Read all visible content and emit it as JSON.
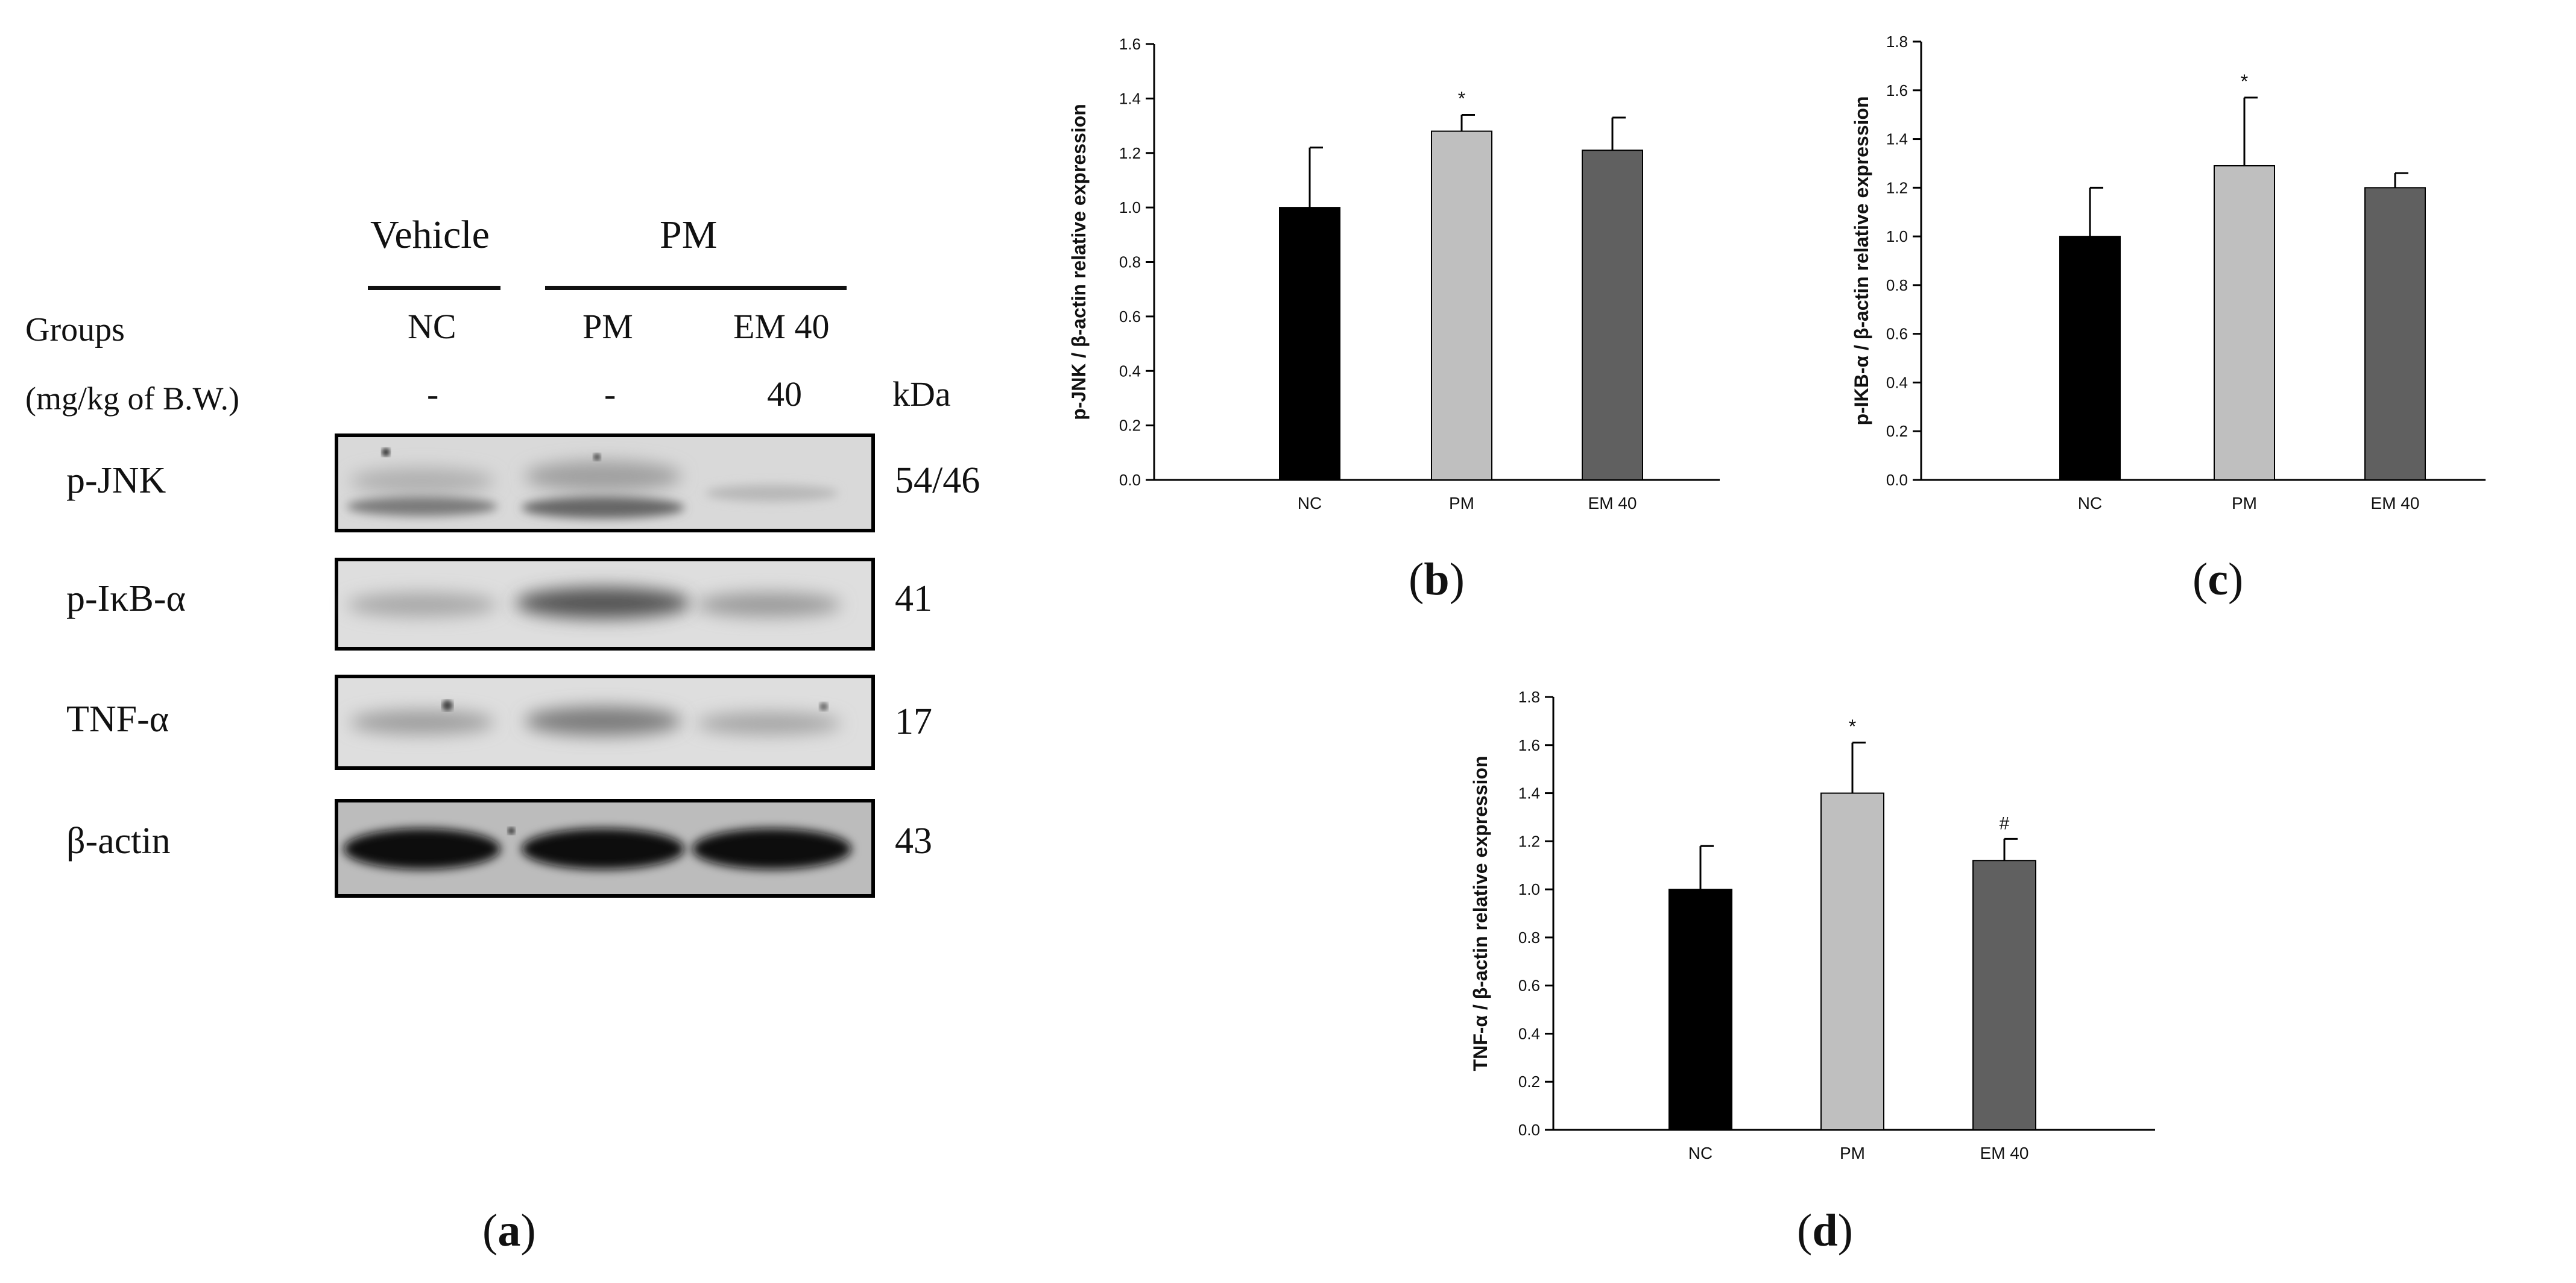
{
  "blot": {
    "header_left": "Vehicle",
    "header_right": "PM",
    "groups_label": "Groups",
    "dose_label": "(mg/kg of B.W.)",
    "kda_label": "kDa",
    "lanes": [
      {
        "name": "NC",
        "dose": "-"
      },
      {
        "name": "PM",
        "dose": "-"
      },
      {
        "name": "EM 40",
        "dose": "40"
      }
    ],
    "rows": [
      {
        "protein": "p-JNK",
        "kda": "54/46"
      },
      {
        "protein": "p-IκB-α",
        "kda": "41"
      },
      {
        "protein": "TNF-α",
        "kda": "17"
      },
      {
        "protein": "β-actin",
        "kda": "43"
      }
    ],
    "panel_label": "a"
  },
  "colors": {
    "NC": "#000000",
    "PM": "#bfbfbf",
    "EM40": "#606060"
  },
  "chart_data": [
    {
      "type": "bar",
      "panel_label": "b",
      "ylabel": "p-JNK / β-actin relative expression",
      "categories": [
        "NC",
        "PM",
        "EM 40"
      ],
      "values": [
        1.0,
        1.28,
        1.21
      ],
      "errors": [
        0.22,
        0.06,
        0.12
      ],
      "annotations": [
        "",
        "*",
        ""
      ],
      "ylim": [
        0,
        1.6
      ],
      "yticks": [
        "0.0",
        "0.2",
        "0.4",
        "0.6",
        "0.8",
        "1.0",
        "1.2",
        "1.4",
        "1.6"
      ]
    },
    {
      "type": "bar",
      "panel_label": "c",
      "ylabel": "p-IKB-α / β-actin relative expression",
      "categories": [
        "NC",
        "PM",
        "EM 40"
      ],
      "values": [
        1.0,
        1.29,
        1.2
      ],
      "errors": [
        0.2,
        0.28,
        0.06
      ],
      "annotations": [
        "",
        "*",
        ""
      ],
      "ylim": [
        0,
        1.8
      ],
      "yticks": [
        "0.0",
        "0.2",
        "0.4",
        "0.6",
        "0.8",
        "1.0",
        "1.2",
        "1.4",
        "1.6",
        "1.8"
      ]
    },
    {
      "type": "bar",
      "panel_label": "d",
      "ylabel": "TNF-α / β-actin relative expression",
      "categories": [
        "NC",
        "PM",
        "EM 40"
      ],
      "values": [
        1.0,
        1.4,
        1.12
      ],
      "errors": [
        0.18,
        0.21,
        0.09
      ],
      "annotations": [
        "",
        "*",
        "#"
      ],
      "ylim": [
        0,
        1.8
      ],
      "yticks": [
        "0.0",
        "0.2",
        "0.4",
        "0.6",
        "0.8",
        "1.0",
        "1.2",
        "1.4",
        "1.6",
        "1.8"
      ]
    }
  ]
}
